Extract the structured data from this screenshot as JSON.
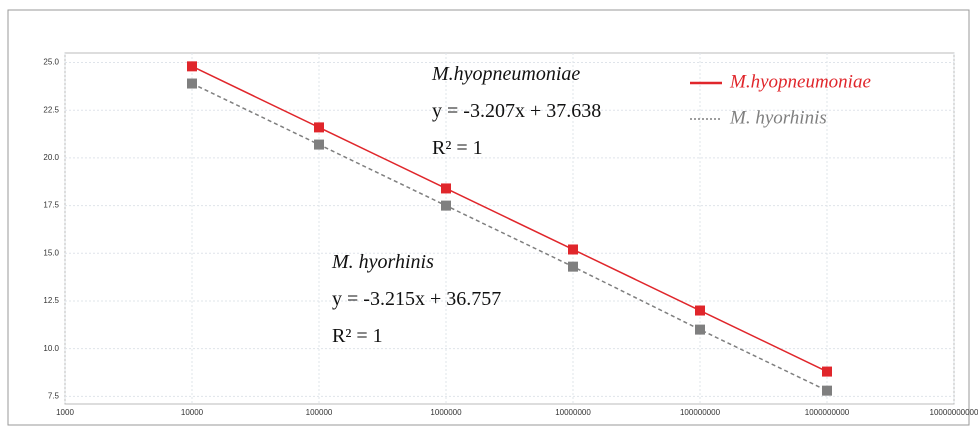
{
  "chart_data": {
    "type": "line",
    "x": [
      10000,
      100000,
      1000000,
      10000000,
      100000000,
      1000000000
    ],
    "series": [
      {
        "name": "M.hyopneumoniae",
        "color": "#e0262b",
        "line_style": "solid",
        "values": [
          24.8,
          21.6,
          18.4,
          15.2,
          12.0,
          8.8
        ]
      },
      {
        "name": "M. hyorhinis",
        "color": "#7f7f7f",
        "line_style": "dashed",
        "values": [
          23.9,
          20.7,
          17.5,
          14.3,
          11.0,
          7.8
        ]
      }
    ],
    "xscale": "log",
    "xlim": [
      1000,
      10000000000
    ],
    "xticks": [
      1000,
      10000,
      100000,
      1000000,
      10000000,
      100000000,
      1000000000,
      10000000000
    ],
    "ylim": [
      7.1,
      25.5
    ],
    "yticks": [
      {
        "value": 25,
        "label": "25.0"
      },
      22.5,
      {
        "value": 20,
        "label": "20.0"
      },
      17.5,
      {
        "value": 15,
        "label": "15.0"
      },
      12.5,
      {
        "value": 10,
        "label": "10.0"
      },
      7.5
    ],
    "grid": true,
    "legend": "upper right",
    "annotations": [
      {
        "lines": [
          "M.hyopneumoniae",
          "y = -3.207x + 37.638",
          "R² = 1"
        ]
      },
      {
        "lines": [
          "M. hyorhinis",
          "y = -3.215x + 36.757",
          "R² = 1"
        ]
      }
    ]
  }
}
